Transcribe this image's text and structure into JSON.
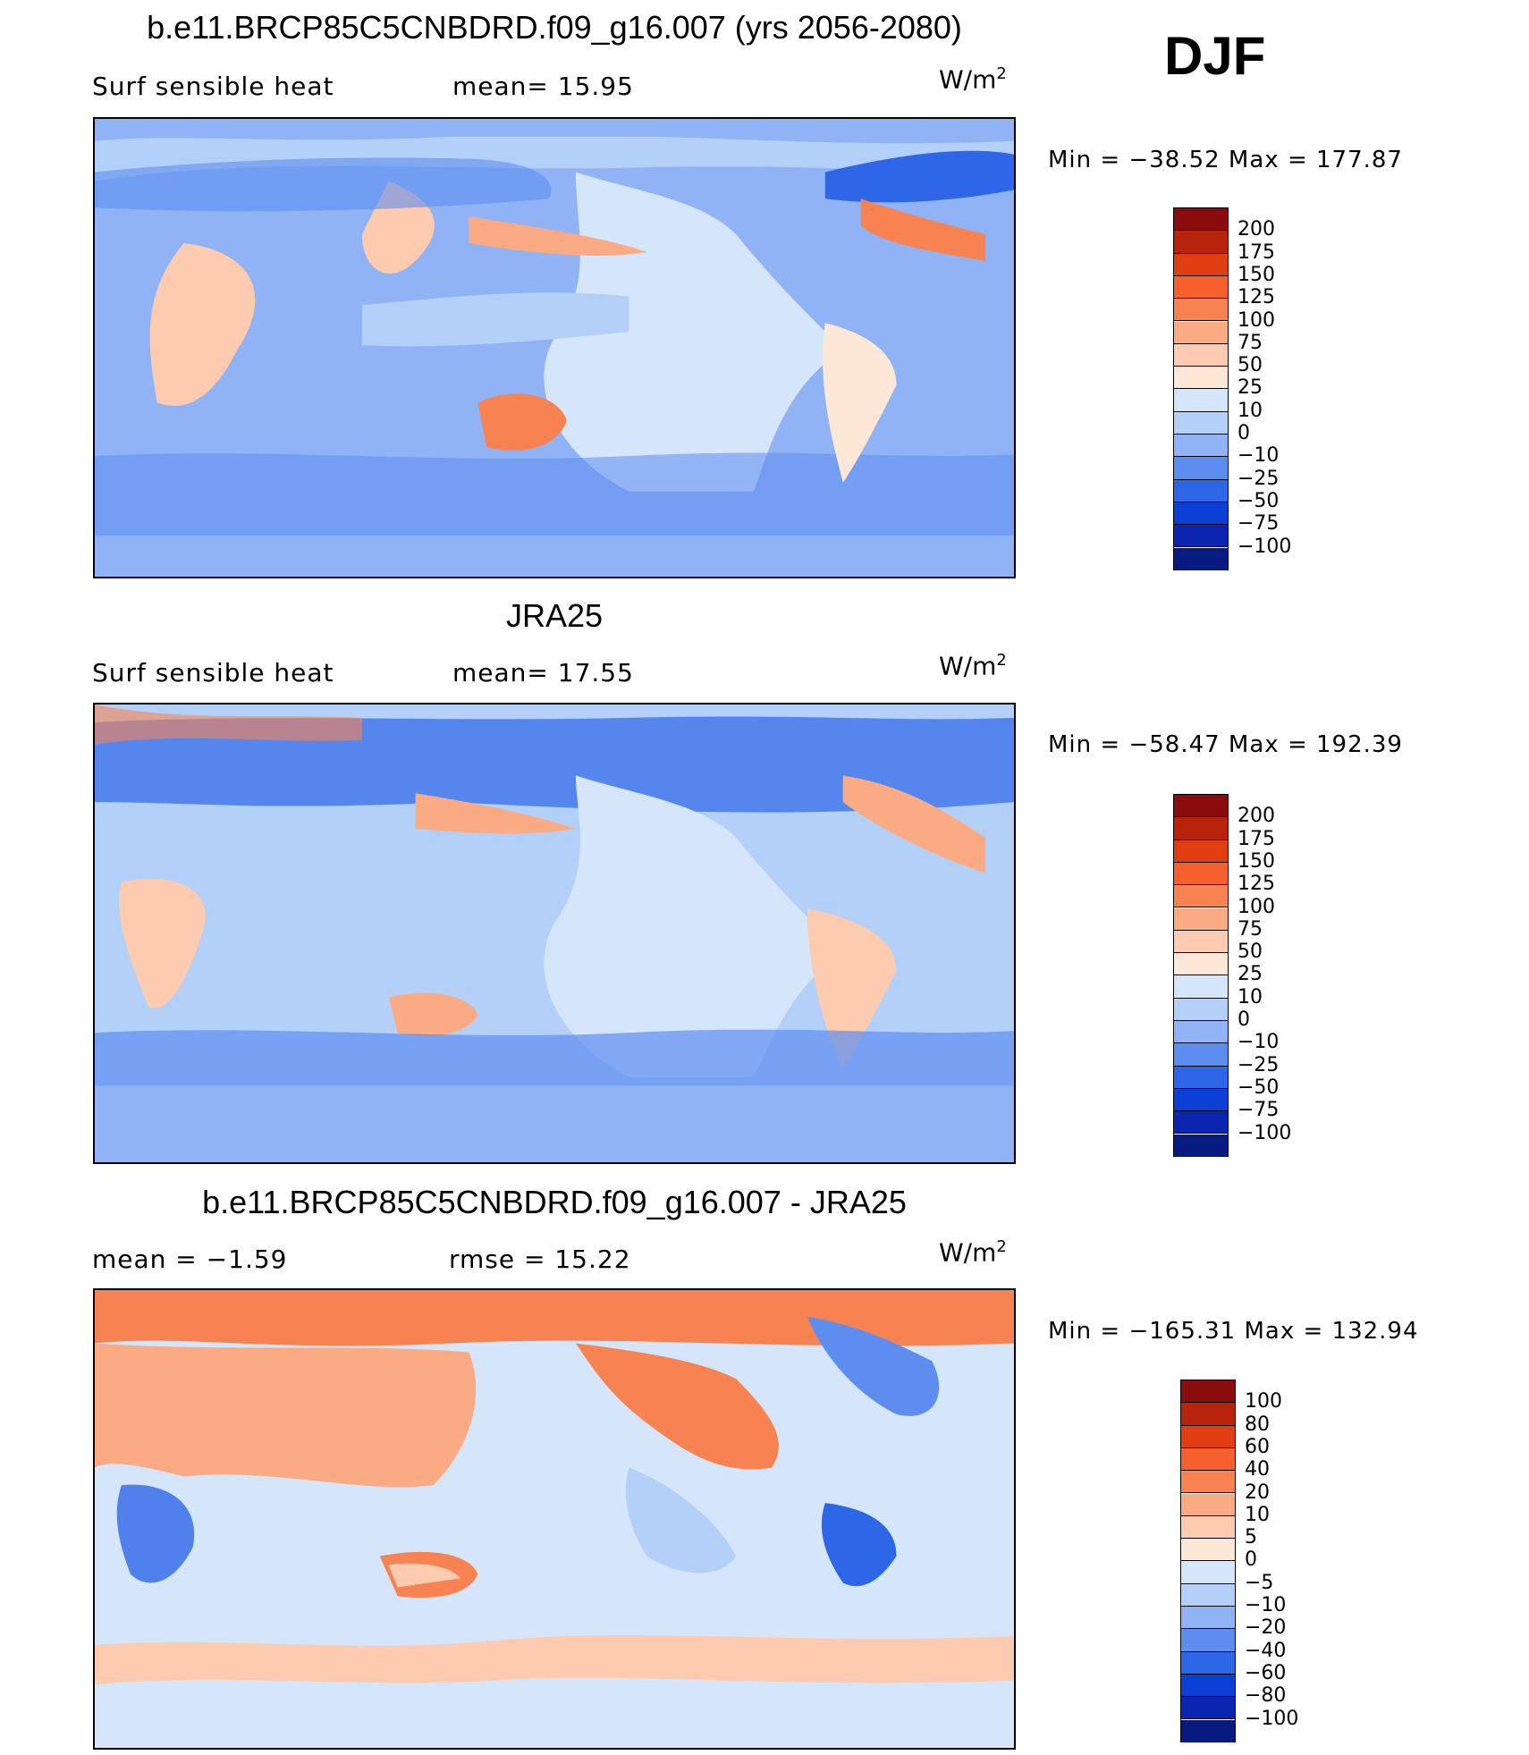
{
  "header": {
    "season": "DJF"
  },
  "panels": [
    {
      "id": "model",
      "title": "b.e11.BRCP85C5CNBDRD.f09_g16.007 (yrs 2056-2080)",
      "left_text": "Surf  sensible  heat",
      "mid_text": "mean=   15.95",
      "units_base": "W/m",
      "units_exp": "2",
      "minmax": "Min  =  −38.52  Max  =  177.87",
      "colorbar": {
        "labels": [
          "200",
          "175",
          "150",
          "125",
          "100",
          "75",
          "50",
          "25",
          "10",
          "0",
          "−10",
          "−25",
          "−50",
          "−75",
          "−100"
        ],
        "colors": [
          "#8b0c0c",
          "#b8230c",
          "#e03d10",
          "#f6602c",
          "#f88352",
          "#fbab84",
          "#fccbb0",
          "#fde8d8",
          "#d5e6fb",
          "#b3d0f8",
          "#8fb3f5",
          "#5e8df0",
          "#2e66e8",
          "#0b3fd6",
          "#0a26b0",
          "#071a80"
        ]
      }
    },
    {
      "id": "obs",
      "title": "JRA25",
      "left_text": "Surf  sensible  heat",
      "mid_text": "mean=   17.55",
      "units_base": "W/m",
      "units_exp": "2",
      "minmax": "Min  =  −58.47  Max  =  192.39",
      "colorbar": {
        "labels": [
          "200",
          "175",
          "150",
          "125",
          "100",
          "75",
          "50",
          "25",
          "10",
          "0",
          "−10",
          "−25",
          "−50",
          "−75",
          "−100"
        ],
        "colors": [
          "#8b0c0c",
          "#b8230c",
          "#e03d10",
          "#f6602c",
          "#f88352",
          "#fbab84",
          "#fccbb0",
          "#fde8d8",
          "#d5e6fb",
          "#b3d0f8",
          "#8fb3f5",
          "#5e8df0",
          "#2e66e8",
          "#0b3fd6",
          "#0a26b0",
          "#071a80"
        ]
      }
    },
    {
      "id": "diff",
      "title": "b.e11.BRCP85C5CNBDRD.f09_g16.007 - JRA25",
      "left_text": "mean  =   −1.59",
      "mid_text": "rmse  =   15.22",
      "units_base": "W/m",
      "units_exp": "2",
      "minmax": "Min  =  −165.31  Max  =  132.94",
      "colorbar": {
        "labels": [
          "100",
          "80",
          "60",
          "40",
          "20",
          "10",
          "5",
          "0",
          "−5",
          "−10",
          "−20",
          "−40",
          "−60",
          "−80",
          "−100"
        ],
        "colors": [
          "#8b0c0c",
          "#b8230c",
          "#e03d10",
          "#f6602c",
          "#f88352",
          "#fbab84",
          "#fccbb0",
          "#fde8d8",
          "#d5e6fb",
          "#b3d0f8",
          "#8fb3f5",
          "#5e8df0",
          "#2e66e8",
          "#0b3fd6",
          "#0a26b0",
          "#071a80"
        ]
      }
    }
  ]
}
